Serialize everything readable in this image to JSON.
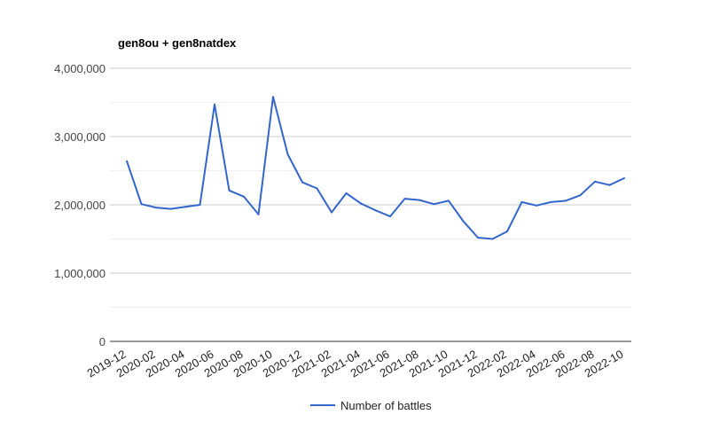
{
  "chart_data": {
    "type": "line",
    "title": "gen8ou + gen8natdex",
    "xlabel": "",
    "ylabel": "",
    "ylim": [
      0,
      4000000
    ],
    "yticks": [
      "0",
      "1,000,000",
      "2,000,000",
      "3,000,000",
      "4,000,000"
    ],
    "ytick_values": [
      0,
      1000000,
      2000000,
      3000000,
      4000000
    ],
    "x": [
      "2019-12",
      "2020-01",
      "2020-02",
      "2020-03",
      "2020-04",
      "2020-05",
      "2020-06",
      "2020-07",
      "2020-08",
      "2020-09",
      "2020-10",
      "2020-11",
      "2020-12",
      "2021-01",
      "2021-02",
      "2021-03",
      "2021-04",
      "2021-05",
      "2021-06",
      "2021-07",
      "2021-08",
      "2021-09",
      "2021-10",
      "2021-11",
      "2021-12",
      "2022-01",
      "2022-02",
      "2022-03",
      "2022-04",
      "2022-05",
      "2022-06",
      "2022-07",
      "2022-08",
      "2022-09",
      "2022-10"
    ],
    "xtick_labels": [
      "2019-12",
      "2020-02",
      "2020-04",
      "2020-06",
      "2020-08",
      "2020-10",
      "2020-12",
      "2021-02",
      "2021-04",
      "2021-06",
      "2021-08",
      "2021-10",
      "2021-12",
      "2022-02",
      "2022-04",
      "2022-06",
      "2022-08",
      "2022-10"
    ],
    "series": [
      {
        "name": "Number of battles",
        "color": "#3366cc",
        "values": [
          2640000,
          2010000,
          1960000,
          1940000,
          1970000,
          2000000,
          3470000,
          2210000,
          2120000,
          1860000,
          3580000,
          2740000,
          2330000,
          2240000,
          1890000,
          2170000,
          2020000,
          1920000,
          1830000,
          2090000,
          2070000,
          2010000,
          2060000,
          1760000,
          1520000,
          1500000,
          1610000,
          2040000,
          1990000,
          2040000,
          2060000,
          2140000,
          2340000,
          2290000,
          2390000
        ]
      }
    ],
    "grid": true,
    "legend_position": "bottom"
  }
}
